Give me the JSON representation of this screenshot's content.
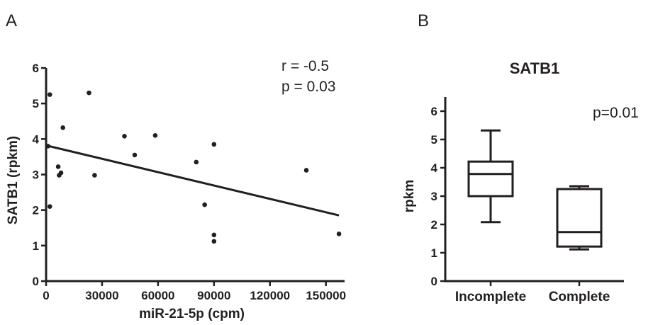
{
  "colors": {
    "ink": "#231f20",
    "background": "#ffffff"
  },
  "panels": {
    "a_label": "A",
    "b_label": "B"
  },
  "chart_data": [
    {
      "type": "scatter",
      "panel": "A",
      "title": "",
      "xlabel": "miR-21-5p (cpm)",
      "ylabel": "SATB1 (rpkm)",
      "xlim": [
        0,
        160000
      ],
      "ylim": [
        0,
        6
      ],
      "xticks": [
        0,
        30000,
        60000,
        90000,
        120000,
        150000
      ],
      "xtick_labels": [
        "0",
        "30000",
        "60000",
        "90000",
        "120000",
        "150000"
      ],
      "yticks": [
        0,
        1,
        2,
        3,
        4,
        5,
        6
      ],
      "ytick_labels": [
        "0",
        "1",
        "2",
        "3",
        "4",
        "5",
        "6"
      ],
      "points": [
        {
          "x": 1000,
          "y": 3.8
        },
        {
          "x": 2000,
          "y": 5.25
        },
        {
          "x": 2000,
          "y": 2.1
        },
        {
          "x": 6500,
          "y": 3.22
        },
        {
          "x": 7000,
          "y": 2.98
        },
        {
          "x": 8000,
          "y": 3.05
        },
        {
          "x": 9000,
          "y": 4.32
        },
        {
          "x": 23000,
          "y": 5.3
        },
        {
          "x": 26000,
          "y": 2.98
        },
        {
          "x": 42000,
          "y": 4.08
        },
        {
          "x": 47500,
          "y": 3.55
        },
        {
          "x": 58500,
          "y": 4.1
        },
        {
          "x": 80500,
          "y": 3.35
        },
        {
          "x": 85000,
          "y": 2.15
        },
        {
          "x": 90000,
          "y": 3.85
        },
        {
          "x": 90000,
          "y": 1.3
        },
        {
          "x": 90000,
          "y": 1.12
        },
        {
          "x": 139500,
          "y": 3.12
        },
        {
          "x": 157000,
          "y": 1.33
        }
      ],
      "regression_line": {
        "x": [
          0,
          157000
        ],
        "y": [
          3.82,
          1.85
        ]
      },
      "annotations": [
        "r = -0.5",
        "p = 0.03"
      ],
      "grid": false
    },
    {
      "type": "box",
      "panel": "B",
      "title": "SATB1",
      "xlabel": "",
      "ylabel": "rpkm",
      "ylim": [
        0,
        6.5
      ],
      "yticks": [
        0,
        1,
        2,
        3,
        4,
        5,
        6
      ],
      "ytick_labels": [
        "0",
        "1",
        "2",
        "3",
        "4",
        "5",
        "6"
      ],
      "categories": [
        "Incomplete",
        "Complete"
      ],
      "boxes": [
        {
          "min": 2.08,
          "q1": 3.0,
          "median": 3.78,
          "q3": 4.22,
          "max": 5.32
        },
        {
          "min": 1.12,
          "q1": 1.22,
          "median": 1.73,
          "q3": 3.25,
          "max": 3.35
        }
      ],
      "annotation": "p=0.01",
      "grid": false
    }
  ]
}
